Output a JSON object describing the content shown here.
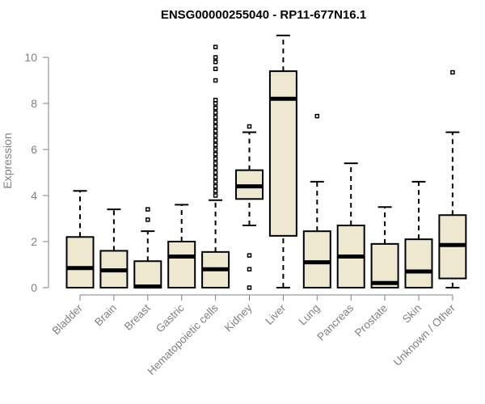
{
  "chart_data": {
    "type": "boxplot",
    "title": "ENSG00000255040 - RP11-677N16.1",
    "ylabel": "Expression",
    "xlabel": "",
    "ylim": [
      0,
      11
    ],
    "yticks": [
      0,
      2,
      4,
      6,
      8,
      10
    ],
    "box_fill": "#efe8d0",
    "categories": [
      "Bladder",
      "Brain",
      "Breast",
      "Gastric",
      "Hematopoietic cells",
      "Kidney",
      "Liver",
      "Lung",
      "Pancreas",
      "Prostate",
      "Skin",
      "Unknown / Other"
    ],
    "boxes": [
      {
        "category": "Bladder",
        "min": 0.0,
        "q1": 0.0,
        "median": 0.85,
        "q3": 2.2,
        "max": 4.2,
        "outliers": []
      },
      {
        "category": "Brain",
        "min": 0.0,
        "q1": 0.0,
        "median": 0.75,
        "q3": 1.6,
        "max": 3.4,
        "outliers": []
      },
      {
        "category": "Breast",
        "min": 0.0,
        "q1": 0.0,
        "median": 0.05,
        "q3": 1.15,
        "max": 2.45,
        "outliers": [
          2.95,
          3.4
        ]
      },
      {
        "category": "Gastric",
        "min": 0.0,
        "q1": 0.0,
        "median": 1.35,
        "q3": 2.0,
        "max": 3.6,
        "outliers": []
      },
      {
        "category": "Hematopoietic cells",
        "min": 0.0,
        "q1": 0.0,
        "median": 0.8,
        "q3": 1.55,
        "max": 3.8,
        "outliers": [
          4.0,
          4.2,
          4.4,
          4.6,
          4.8,
          5.0,
          5.2,
          5.4,
          5.6,
          5.8,
          6.0,
          6.2,
          6.4,
          6.6,
          6.8,
          7.0,
          7.2,
          7.4,
          7.6,
          7.8,
          8.0,
          8.15,
          9.0,
          9.5,
          9.8,
          10.0,
          10.45
        ]
      },
      {
        "category": "Kidney",
        "min": 2.7,
        "q1": 3.85,
        "median": 4.4,
        "q3": 5.1,
        "max": 6.75,
        "outliers": [
          7.0,
          1.4,
          0.8,
          0.0
        ]
      },
      {
        "category": "Liver",
        "min": 0.0,
        "q1": 2.25,
        "median": 8.2,
        "q3": 9.4,
        "max": 10.95,
        "outliers": []
      },
      {
        "category": "Lung",
        "min": 0.0,
        "q1": 0.0,
        "median": 1.1,
        "q3": 2.45,
        "max": 4.6,
        "outliers": [
          7.45
        ]
      },
      {
        "category": "Pancreas",
        "min": 0.0,
        "q1": 0.0,
        "median": 1.35,
        "q3": 2.7,
        "max": 5.4,
        "outliers": []
      },
      {
        "category": "Prostate",
        "min": 0.0,
        "q1": 0.0,
        "median": 0.2,
        "q3": 1.9,
        "max": 3.5,
        "outliers": []
      },
      {
        "category": "Skin",
        "min": 0.0,
        "q1": 0.0,
        "median": 0.7,
        "q3": 2.1,
        "max": 4.6,
        "outliers": []
      },
      {
        "category": "Unknown / Other",
        "min": 0.0,
        "q1": 0.4,
        "median": 1.85,
        "q3": 3.15,
        "max": 6.75,
        "outliers": [
          9.35
        ]
      }
    ]
  }
}
